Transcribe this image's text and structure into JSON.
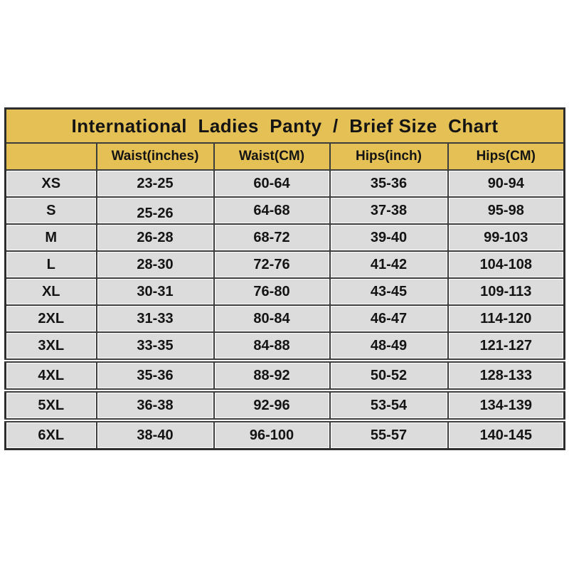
{
  "title": "International  Ladies  Panty  /  Brief Size  Chart",
  "colors": {
    "header_gold": "#e4c055",
    "row_gray": "#dcdcdc",
    "border_dark": "#3c3c3c",
    "text": "#141414",
    "background": "#ffffff"
  },
  "chart_data": {
    "type": "table",
    "title": "International  Ladies  Panty  /  Brief Size  Chart",
    "columns": [
      "",
      "Waist(inches)",
      "Waist(CM)",
      "Hips(inch)",
      "Hips(CM)"
    ],
    "rows": [
      [
        "XS",
        "23-25",
        "60-64",
        "35-36",
        "90-94"
      ],
      [
        "S",
        "25-26",
        "64-68",
        "37-38",
        "95-98"
      ],
      [
        "M",
        "26-28",
        "68-72",
        "39-40",
        "99-103"
      ],
      [
        "L",
        "28-30",
        "72-76",
        "41-42",
        "104-108"
      ],
      [
        "XL",
        "30-31",
        "76-80",
        "43-45",
        "109-113"
      ],
      [
        "2XL",
        "31-33",
        "80-84",
        "46-47",
        "114-120"
      ],
      [
        "3XL",
        "33-35",
        "84-88",
        "48-49",
        "121-127"
      ],
      [
        "4XL",
        "35-36",
        "88-92",
        "50-52",
        "128-133"
      ],
      [
        "5XL",
        "36-38",
        "92-96",
        "53-54",
        "134-139"
      ],
      [
        "6XL",
        "38-40",
        "96-100",
        "55-57",
        "140-145"
      ]
    ],
    "layout": {
      "legend": "none",
      "grid": "full-borders",
      "header_background": "gold",
      "body_background": "light-gray"
    }
  }
}
